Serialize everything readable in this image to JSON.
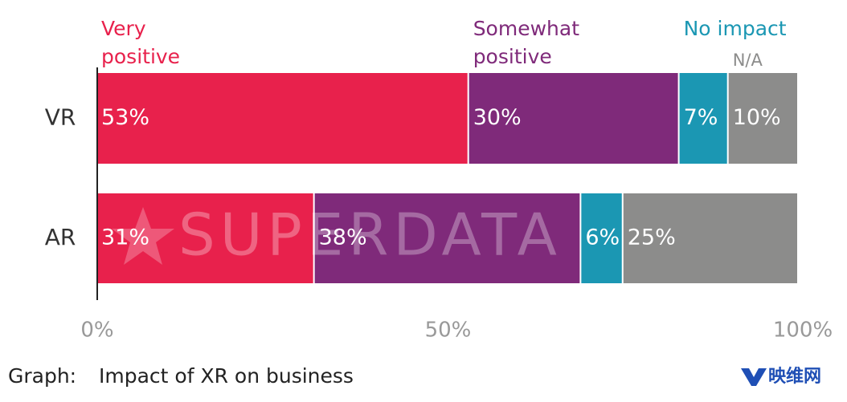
{
  "chart_data": {
    "type": "stacked-barh",
    "categories": [
      "VR",
      "AR"
    ],
    "series": [
      {
        "name": "Very positive",
        "color": "#e8214c",
        "values": [
          53,
          31
        ],
        "value_labels": [
          "53%",
          "31%"
        ]
      },
      {
        "name": "Somewhat positive",
        "color": "#7f2a7a",
        "values": [
          30,
          38
        ],
        "value_labels": [
          "30%",
          "38%"
        ]
      },
      {
        "name": "No impact",
        "color": "#1b97b3",
        "values": [
          7,
          6
        ],
        "value_labels": [
          "7%",
          "6%"
        ]
      },
      {
        "name": "N/A",
        "color": "#8c8c8b",
        "values": [
          10,
          25
        ],
        "value_labels": [
          "10%",
          "25%"
        ]
      }
    ],
    "xlim": [
      0,
      100
    ],
    "xticks": [
      {
        "value": 0,
        "label": "0%"
      },
      {
        "value": 50,
        "label": "50%"
      },
      {
        "value": 100,
        "label": "100%"
      }
    ],
    "watermark": "SUPERDATA",
    "caption_label": "Graph:",
    "caption": "Impact of XR on business",
    "logo": "映维网"
  }
}
